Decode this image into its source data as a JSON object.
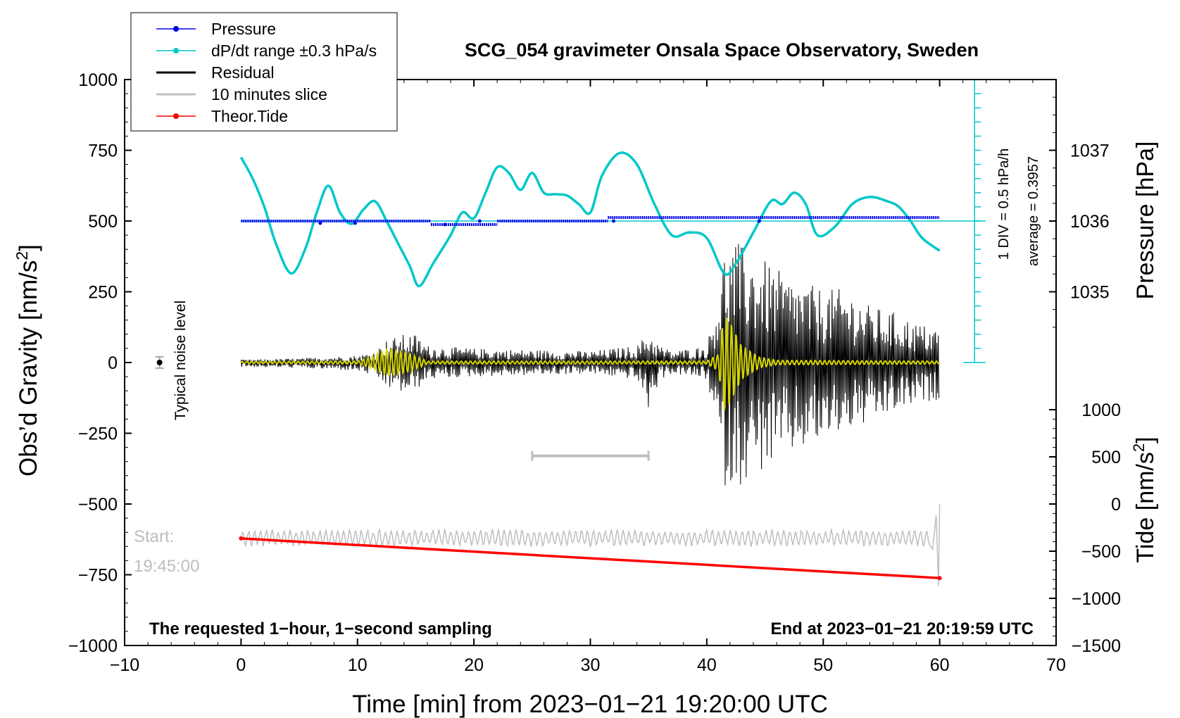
{
  "chart_data": {
    "type": "line",
    "title": "SCG_054 gravimeter Onsala Space Observatory, Sweden",
    "xlabel": "Time [min] from 2023−01−21 19:20:00 UTC",
    "ylabel_left": "Obs’d Gravity [nm/s",
    "ylabel_left_sup": "2",
    "ylabel_left_close": "]",
    "ylabel_right_pressure": "Pressure [hPa]",
    "ylabel_right_tide": "Tide [nm/s",
    "ylabel_right_tide_sup": "2",
    "ylabel_right_tide_close": "]",
    "xlim": [
      -10,
      70
    ],
    "ylim": [
      -1000,
      1000
    ],
    "x_ticks": [
      {
        "value": -10,
        "label": "−10"
      },
      {
        "value": 0,
        "label": "0"
      },
      {
        "value": 10,
        "label": "10"
      },
      {
        "value": 20,
        "label": "20"
      },
      {
        "value": 30,
        "label": "30"
      },
      {
        "value": 40,
        "label": "40"
      },
      {
        "value": 50,
        "label": "50"
      },
      {
        "value": 60,
        "label": "60"
      },
      {
        "value": 70,
        "label": "70"
      }
    ],
    "y_ticks": [
      {
        "value": 1000,
        "label": "1000"
      },
      {
        "value": 750,
        "label": "750"
      },
      {
        "value": 500,
        "label": "500"
      },
      {
        "value": 250,
        "label": "250"
      },
      {
        "value": 0,
        "label": "0"
      },
      {
        "value": -250,
        "label": "−250"
      },
      {
        "value": -500,
        "label": "−500"
      },
      {
        "value": -750,
        "label": "−750"
      },
      {
        "value": -1000,
        "label": "−1000"
      }
    ],
    "pressure_ticks": [
      {
        "value": 1037,
        "label": "1037"
      },
      {
        "value": 1036,
        "label": "1036"
      },
      {
        "value": 1035,
        "label": "1035"
      }
    ],
    "pressure_axis": {
      "ref_hpa": 1036,
      "ref_gravity": 500,
      "gravity_per_hpa": 250
    },
    "tide_ticks": [
      {
        "value": 1000,
        "label": "1000"
      },
      {
        "value": 500,
        "label": "500"
      },
      {
        "value": 0,
        "label": "0"
      },
      {
        "value": -500,
        "label": "−500"
      },
      {
        "value": -1000,
        "label": "−1000"
      },
      {
        "value": -1500,
        "label": "−1500"
      }
    ],
    "tide_axis": {
      "ref_tide": 0,
      "ref_gravity": -500,
      "gravity_per_tide": 0.33333
    },
    "legend": [
      {
        "label": "Pressure",
        "color": "#0000ee",
        "marker": true
      },
      {
        "label": "dP/dt range ±0.3 hPa/s",
        "color": "#00c8c8",
        "marker": true
      },
      {
        "label": "Residual",
        "color": "#000000",
        "marker": false
      },
      {
        "label": "10 minutes slice",
        "color": "#bebebe",
        "marker": false
      },
      {
        "label": "Theor.Tide",
        "color": "#ff0000",
        "marker": true
      }
    ],
    "pressure_series": [
      {
        "x": [
          0,
          16.3
        ],
        "y": 1036.0
      },
      {
        "x": [
          16.3,
          22
        ],
        "y": 1035.95
      },
      {
        "x": [
          22,
          31.5
        ],
        "y": 1036.0
      },
      {
        "x": [
          31.5,
          60
        ],
        "y": 1036.05
      }
    ],
    "dpdt_series": {
      "x": [
        0,
        1,
        2,
        3,
        4.3,
        5.5,
        6.5,
        7.5,
        8.5,
        9.5,
        10.5,
        11.5,
        12.5,
        13.5,
        14.5,
        15.3,
        16.5,
        18,
        19,
        20,
        21,
        22,
        23,
        24,
        25,
        26,
        27,
        28,
        29,
        30,
        31,
        32.5,
        34,
        35.5,
        37,
        38.5,
        40,
        41.5,
        42.5,
        44,
        45.5,
        46.5,
        47.5,
        48.5,
        49.5,
        51,
        52.5,
        54,
        55.5,
        56.5,
        57.5,
        58.5,
        60
      ],
      "y": [
        725,
        650,
        550,
        420,
        315,
        400,
        530,
        625,
        530,
        490,
        540,
        570,
        500,
        420,
        340,
        270,
        350,
        450,
        530,
        510,
        600,
        690,
        670,
        610,
        670,
        600,
        595,
        590,
        560,
        530,
        660,
        740,
        700,
        560,
        450,
        460,
        440,
        315,
        350,
        460,
        570,
        560,
        600,
        560,
        450,
        480,
        560,
        585,
        570,
        550,
        500,
        440,
        395
      ]
    },
    "residual_envelope": {
      "x": [
        0,
        5,
        10,
        11.5,
        12.5,
        14,
        15,
        16,
        20,
        25,
        30,
        34,
        35,
        36,
        37,
        40,
        41,
        41.5,
        42.5,
        43.5,
        45,
        47,
        50,
        52,
        54,
        56,
        58,
        60
      ],
      "up": [
        10,
        15,
        25,
        40,
        80,
        100,
        100,
        60,
        50,
        45,
        40,
        60,
        110,
        60,
        40,
        60,
        250,
        400,
        430,
        400,
        360,
        300,
        260,
        260,
        200,
        180,
        140,
        120
      ],
      "down": [
        -15,
        -20,
        -30,
        -50,
        -90,
        -110,
        -100,
        -60,
        -50,
        -45,
        -40,
        -60,
        -170,
        -60,
        -40,
        -60,
        -280,
        -440,
        -440,
        -420,
        -380,
        -330,
        -280,
        -240,
        -220,
        -180,
        -150,
        -130
      ]
    },
    "yellow_envelope": {
      "x": [
        0,
        10,
        11.5,
        12.5,
        14,
        15.5,
        16,
        40,
        41,
        41.5,
        42,
        43,
        44.5,
        46,
        60
      ],
      "amp": [
        3,
        5,
        25,
        50,
        40,
        15,
        5,
        5,
        30,
        180,
        150,
        60,
        20,
        8,
        5
      ]
    },
    "noise_marker": {
      "x": -7,
      "y": 0,
      "error": 20
    },
    "noise_label": "Typical noise level",
    "slice_bar": {
      "x_start": 25,
      "x_end": 35,
      "y": -330
    },
    "gray_trace": {
      "x_start": 0,
      "x_end": 60,
      "center": -620,
      "amp": 25,
      "end_spike_high": -500,
      "end_spike_low": -790
    },
    "tide_line": {
      "x": [
        0,
        60
      ],
      "tide": [
        -365,
        -785
      ]
    },
    "pressure_inset": {
      "x": 63,
      "y_top": 1000,
      "y_bottom": 0,
      "tick_step": 50,
      "ref_line_y": 500,
      "ref_line_x_start": 0,
      "label_div": "1 DIV = 0.5 hPa/h",
      "label_avg": "average = 0.3957"
    },
    "start_label": "Start:",
    "start_time": "19:45:00",
    "footer_left": "The requested 1−hour, 1−second sampling",
    "footer_right": "End at 2023−01−21 20:19:59 UTC"
  }
}
